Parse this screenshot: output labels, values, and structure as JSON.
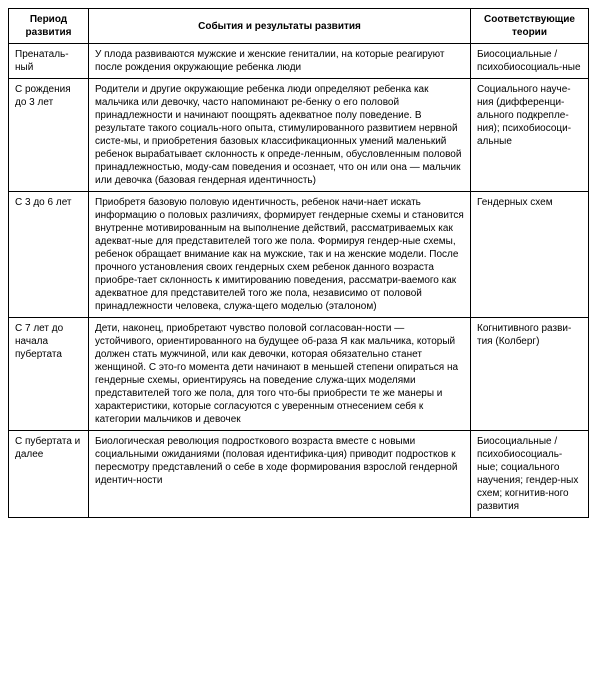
{
  "headers": {
    "period": "Период развития",
    "events": "События и результаты развития",
    "theories": "Соответствующие теории"
  },
  "rows": [
    {
      "period": "Пренаталь-ный",
      "events": "У плода развиваются мужские и женские гениталии, на которые реагируют после рождения окружающие ребенка люди",
      "theories": "Биосоциальные / психобиосоциаль-ные"
    },
    {
      "period": "С рождения до 3 лет",
      "events": "Родители и другие окружающие ребенка люди определяют ребенка как мальчика или девочку, часто напоминают ре-бенку о его половой принадлежности и начинают поощрять адекватное полу поведение. В результате такого социаль-ного опыта, стимулированного развитием нервной систе-мы, и приобретения базовых классификационных умений маленький ребенок вырабатывает склонность к опреде-ленным, обусловленным половой принадлежностью, моду-сам поведения и осознает, что он или она — мальчик или девочка (базовая гендерная идентичность)",
      "theories": "Социального науче-ния (дифференци-ального подкрепле-ния); психобиосоци-альные"
    },
    {
      "period": "С 3 до 6 лет",
      "events": "Приобретя базовую половую идентичность, ребенок начи-нает искать информацию о половых различиях, формирует гендерные схемы и становится внутренне мотивированным на выполнение действий, рассматриваемых как адекват-ные для представителей того же пола. Формируя гендер-ные схемы, ребенок обращает внимание как на мужские, так и на женские модели. После прочного установления своих гендерных схем ребенок данного возраста приобре-тает склонность к имитированию поведения, рассматри-ваемого как адекватное для представителей того же пола, независимо от половой принадлежности человека, служа-щего моделью (эталоном)",
      "theories": "Гендерных схем"
    },
    {
      "period": "С 7 лет до начала пубертата",
      "events": "Дети, наконец, приобретают чувство половой согласован-ности — устойчивого, ориентированного на будущее об-раза Я как мальчика, который должен стать мужчиной, или как девочки, которая обязательно станет женщиной. С это-го момента дети начинают в меньшей степени опираться на гендерные схемы, ориентируясь на поведение служа-щих моделями представителей того же пола, для того что-бы приобрести те же манеры и характеристики, которые согласуются с уверенным отнесением себя к категории мальчиков и девочек",
      "theories": "Когнитивного разви-тия (Колберг)"
    },
    {
      "period": "С пубертата и далее",
      "events": "Биологическая революция подросткового возраста вместе с новыми социальными ожиданиями (половая идентифика-ция) приводит подростков к пересмотру представлений о себе в ходе формирования взрослой гендерной идентич-ности",
      "theories": "Биосоциальные / психобиосоциаль-ные; социального научения; гендер-ных схем; когнитив-ного развития"
    }
  ]
}
